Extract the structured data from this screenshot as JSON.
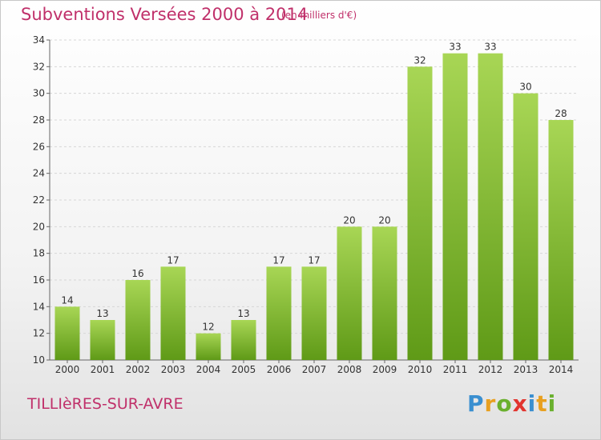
{
  "header": {
    "title": "Subventions Versées 2000 à 2014",
    "subtitle": "(en milliers d'€)"
  },
  "footer": {
    "commune": "TILLIèRES-SUR-AVRE",
    "brand_letters": [
      {
        "ch": "P",
        "color": "#3a8fd0"
      },
      {
        "ch": "r",
        "color": "#e8a020"
      },
      {
        "ch": "o",
        "color": "#6ab02e"
      },
      {
        "ch": "x",
        "color": "#e2352f"
      },
      {
        "ch": "i",
        "color": "#3a8fd0"
      },
      {
        "ch": "t",
        "color": "#e8a020"
      },
      {
        "ch": "i",
        "color": "#6ab02e"
      }
    ]
  },
  "chart_data": {
    "type": "bar",
    "categories": [
      "2000",
      "2001",
      "2002",
      "2003",
      "2004",
      "2005",
      "2006",
      "2007",
      "2008",
      "2009",
      "2010",
      "2011",
      "2012",
      "2013",
      "2014"
    ],
    "values": [
      14,
      13,
      16,
      17,
      12,
      13,
      17,
      17,
      20,
      20,
      32,
      33,
      33,
      30,
      28
    ],
    "title": "Subventions Versées 2000 à 2014",
    "ylim": [
      10,
      34
    ],
    "yticks": [
      10,
      12,
      14,
      16,
      18,
      20,
      22,
      24,
      26,
      28,
      30,
      32,
      34
    ],
    "grid": true,
    "bar_color_top": "#a8d655",
    "bar_color_bottom": "#5f9a17"
  }
}
